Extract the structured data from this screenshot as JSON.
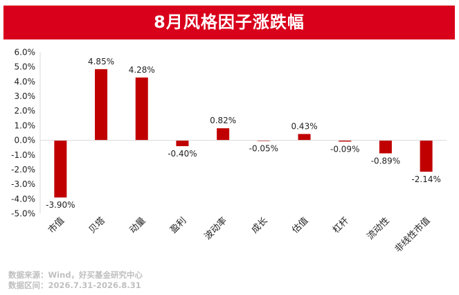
{
  "header": {
    "title": "8月风格因子涨跌幅"
  },
  "colors": {
    "banner": "#d9001b",
    "bar": "#c00000",
    "axis": "#d9d9d9",
    "text": "#222222",
    "source": "#bfbfbf"
  },
  "chart_data": {
    "type": "bar",
    "title": "8月风格因子涨跌幅",
    "categories": [
      "市值",
      "贝塔",
      "动量",
      "盈利",
      "波动率",
      "成长",
      "估值",
      "杠杆",
      "流动性",
      "非线性市值"
    ],
    "values": [
      -3.9,
      4.85,
      4.28,
      -0.4,
      0.82,
      -0.05,
      0.43,
      -0.09,
      -0.89,
      -2.14
    ],
    "value_labels": [
      "-3.90%",
      "4.85%",
      "4.28%",
      "-0.40%",
      "0.82%",
      "-0.05%",
      "0.43%",
      "-0.09%",
      "-0.89%",
      "-2.14%"
    ],
    "yticks": [
      6,
      5,
      4,
      3,
      2,
      1,
      0,
      -1,
      -2,
      -3,
      -4,
      -5
    ],
    "ytick_labels": [
      "6.0%",
      "5.0%",
      "4.0%",
      "3.0%",
      "2.0%",
      "1.0%",
      "0.0%",
      "-1.0%",
      "-2.0%",
      "-3.0%",
      "-4.0%",
      "-5.0%"
    ],
    "ylim": [
      -5,
      6
    ],
    "xlabel": "",
    "ylabel": "",
    "grid": false,
    "legend": "none"
  },
  "source": {
    "line1": "数据来源：Wind，好买基金研究中心",
    "line2": "数据区间：2026.7.31-2026.8.31"
  }
}
